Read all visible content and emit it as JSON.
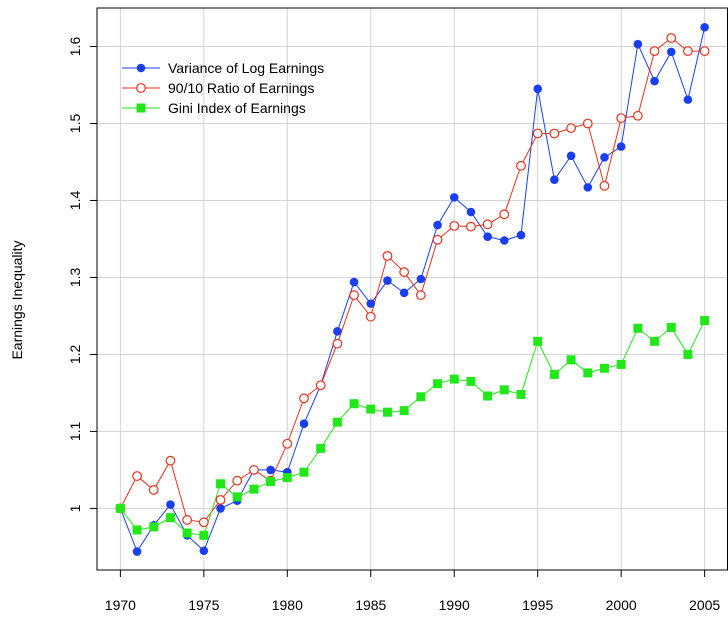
{
  "chart_data": {
    "type": "line",
    "y_label": "Earnings Inequality",
    "x": [
      1970,
      1971,
      1972,
      1973,
      1974,
      1975,
      1976,
      1977,
      1978,
      1979,
      1980,
      1981,
      1982,
      1983,
      1984,
      1985,
      1986,
      1987,
      1988,
      1989,
      1990,
      1991,
      1992,
      1993,
      1994,
      1995,
      1996,
      1997,
      1998,
      1999,
      2000,
      2001,
      2002,
      2003,
      2004,
      2005
    ],
    "series": [
      {
        "name": "Variance of Log Earnings",
        "color": "#1a3ff0",
        "marker": "filled-circle",
        "values": [
          1.0,
          0.944,
          0.978,
          1.005,
          0.965,
          0.945,
          1.0,
          1.01,
          1.05,
          1.05,
          1.047,
          1.11,
          1.16,
          1.23,
          1.294,
          1.266,
          1.296,
          1.28,
          1.298,
          1.368,
          1.404,
          1.385,
          1.353,
          1.348,
          1.355,
          1.545,
          1.427,
          1.458,
          1.417,
          1.456,
          1.47,
          1.603,
          1.555,
          1.593,
          1.531,
          1.625
        ]
      },
      {
        "name": "90/10 Ratio of Earnings",
        "color": "#e8301c",
        "marker": "open-circle",
        "values": [
          1.0,
          1.042,
          1.024,
          1.062,
          0.985,
          0.982,
          1.011,
          1.036,
          1.05,
          1.036,
          1.084,
          1.143,
          1.16,
          1.214,
          1.277,
          1.249,
          1.328,
          1.307,
          1.277,
          1.349,
          1.367,
          1.366,
          1.369,
          1.382,
          1.445,
          1.487,
          1.487,
          1.494,
          1.5,
          1.419,
          1.507,
          1.51,
          1.594,
          1.611,
          1.594,
          1.594
        ]
      },
      {
        "name": "Gini Index of Earnings",
        "color": "#22e81a",
        "marker": "filled-square",
        "values": [
          1.0,
          0.972,
          0.976,
          0.988,
          0.968,
          0.965,
          1.032,
          1.015,
          1.025,
          1.035,
          1.04,
          1.047,
          1.078,
          1.112,
          1.136,
          1.129,
          1.125,
          1.127,
          1.145,
          1.162,
          1.168,
          1.165,
          1.146,
          1.154,
          1.148,
          1.217,
          1.174,
          1.193,
          1.176,
          1.182,
          1.187,
          1.234,
          1.217,
          1.235,
          1.2,
          1.244
        ]
      }
    ],
    "xlim": [
      1968.6,
      2006.4
    ],
    "xticks": [
      1970,
      1975,
      1980,
      1985,
      1990,
      1995,
      2000,
      2005
    ],
    "ylim": [
      0.92,
      1.65
    ],
    "yticks": [
      1.0,
      1.1,
      1.2,
      1.3,
      1.4,
      1.5,
      1.6
    ],
    "grid": true,
    "legend": "topleft"
  }
}
